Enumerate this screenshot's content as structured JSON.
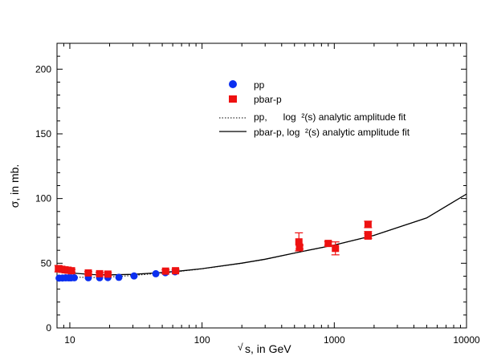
{
  "chart_data": {
    "type": "scatter",
    "x_scale": "log",
    "xlim": [
      8,
      10000
    ],
    "ylim": [
      0,
      220
    ],
    "xlabel_prefix": "√",
    "xlabel": "s, in GeV",
    "ylabel": "σ, in mb.",
    "x_ticks": [
      10,
      100,
      1000,
      10000
    ],
    "x_tick_labels": [
      "10",
      "100",
      "1000",
      "10000"
    ],
    "y_ticks": [
      0,
      50,
      100,
      150,
      200
    ],
    "y_tick_labels": [
      "0",
      "50",
      "100",
      "150",
      "200"
    ],
    "legend_position": "top-center",
    "series": [
      {
        "name": "pp",
        "marker": "circle",
        "color": "#0b2ff0",
        "points": [
          {
            "x": 8.3,
            "y": 38.5
          },
          {
            "x": 8.8,
            "y": 38.6
          },
          {
            "x": 9.3,
            "y": 38.7
          },
          {
            "x": 9.8,
            "y": 38.7
          },
          {
            "x": 10.2,
            "y": 38.7
          },
          {
            "x": 10.8,
            "y": 38.8
          },
          {
            "x": 13.8,
            "y": 38.8
          },
          {
            "x": 16.8,
            "y": 38.8
          },
          {
            "x": 19.4,
            "y": 38.9
          },
          {
            "x": 23.5,
            "y": 39.1
          },
          {
            "x": 30.6,
            "y": 40.2
          },
          {
            "x": 44.7,
            "y": 41.9
          },
          {
            "x": 52.8,
            "y": 42.7
          },
          {
            "x": 62.5,
            "y": 43.4
          }
        ]
      },
      {
        "name": "pbar-p",
        "marker": "square",
        "color": "#ee1111",
        "points": [
          {
            "x": 8.2,
            "y": 45.8,
            "err": 2.5
          },
          {
            "x": 8.7,
            "y": 45.3,
            "err": 1.5
          },
          {
            "x": 9.2,
            "y": 44.9,
            "err": 1.5
          },
          {
            "x": 9.7,
            "y": 44.6,
            "err": 1.2
          },
          {
            "x": 10.3,
            "y": 44.2,
            "err": 1.0
          },
          {
            "x": 13.8,
            "y": 42.5,
            "err": 1.0
          },
          {
            "x": 16.8,
            "y": 41.9,
            "err": 1.0
          },
          {
            "x": 19.4,
            "y": 41.6,
            "err": 1.0
          },
          {
            "x": 53,
            "y": 43.9,
            "err": 1.0
          },
          {
            "x": 63,
            "y": 44.2,
            "err": 1.0
          },
          {
            "x": 540,
            "y": 66.5,
            "err": 7.0
          },
          {
            "x": 546,
            "y": 62.5,
            "err": 1.5
          },
          {
            "x": 900,
            "y": 65.3,
            "err": 1.5
          },
          {
            "x": 1020,
            "y": 61.5,
            "err": 5.0
          },
          {
            "x": 1800,
            "y": 72.0,
            "err": 2.5
          },
          {
            "x": 1800,
            "y": 71.0,
            "err": 2.0
          },
          {
            "x": 1800,
            "y": 80.0,
            "err": 2.5
          }
        ]
      }
    ],
    "fits": [
      {
        "name": "pp,      log  ²(s) analytic amplitude fit",
        "style": "dotted",
        "color": "#000000",
        "points": [
          {
            "x": 8,
            "y": 39.6
          },
          {
            "x": 10,
            "y": 39.3
          },
          {
            "x": 15,
            "y": 39.0
          },
          {
            "x": 20,
            "y": 39.4
          },
          {
            "x": 30,
            "y": 40.5
          },
          {
            "x": 50,
            "y": 42.4
          },
          {
            "x": 70,
            "y": 43.9
          },
          {
            "x": 100,
            "y": 45.6
          },
          {
            "x": 200,
            "y": 50.0
          },
          {
            "x": 300,
            "y": 53.0
          },
          {
            "x": 500,
            "y": 57.8
          },
          {
            "x": 1000,
            "y": 64.0
          },
          {
            "x": 2000,
            "y": 71.5
          },
          {
            "x": 5000,
            "y": 85.0
          },
          {
            "x": 10000,
            "y": 103.5
          }
        ]
      },
      {
        "name": "pbar-p, log  ²(s) analytic amplitude fit",
        "style": "solid",
        "color": "#000000",
        "points": [
          {
            "x": 8,
            "y": 43.8
          },
          {
            "x": 10,
            "y": 42.5
          },
          {
            "x": 15,
            "y": 41.2
          },
          {
            "x": 20,
            "y": 41.0
          },
          {
            "x": 30,
            "y": 41.4
          },
          {
            "x": 50,
            "y": 42.8
          },
          {
            "x": 70,
            "y": 44.1
          },
          {
            "x": 100,
            "y": 45.8
          },
          {
            "x": 200,
            "y": 50.1
          },
          {
            "x": 300,
            "y": 53.1
          },
          {
            "x": 500,
            "y": 57.9
          },
          {
            "x": 1000,
            "y": 64.1
          },
          {
            "x": 2000,
            "y": 71.6
          },
          {
            "x": 5000,
            "y": 85.0
          },
          {
            "x": 10000,
            "y": 103.5
          }
        ]
      }
    ]
  }
}
